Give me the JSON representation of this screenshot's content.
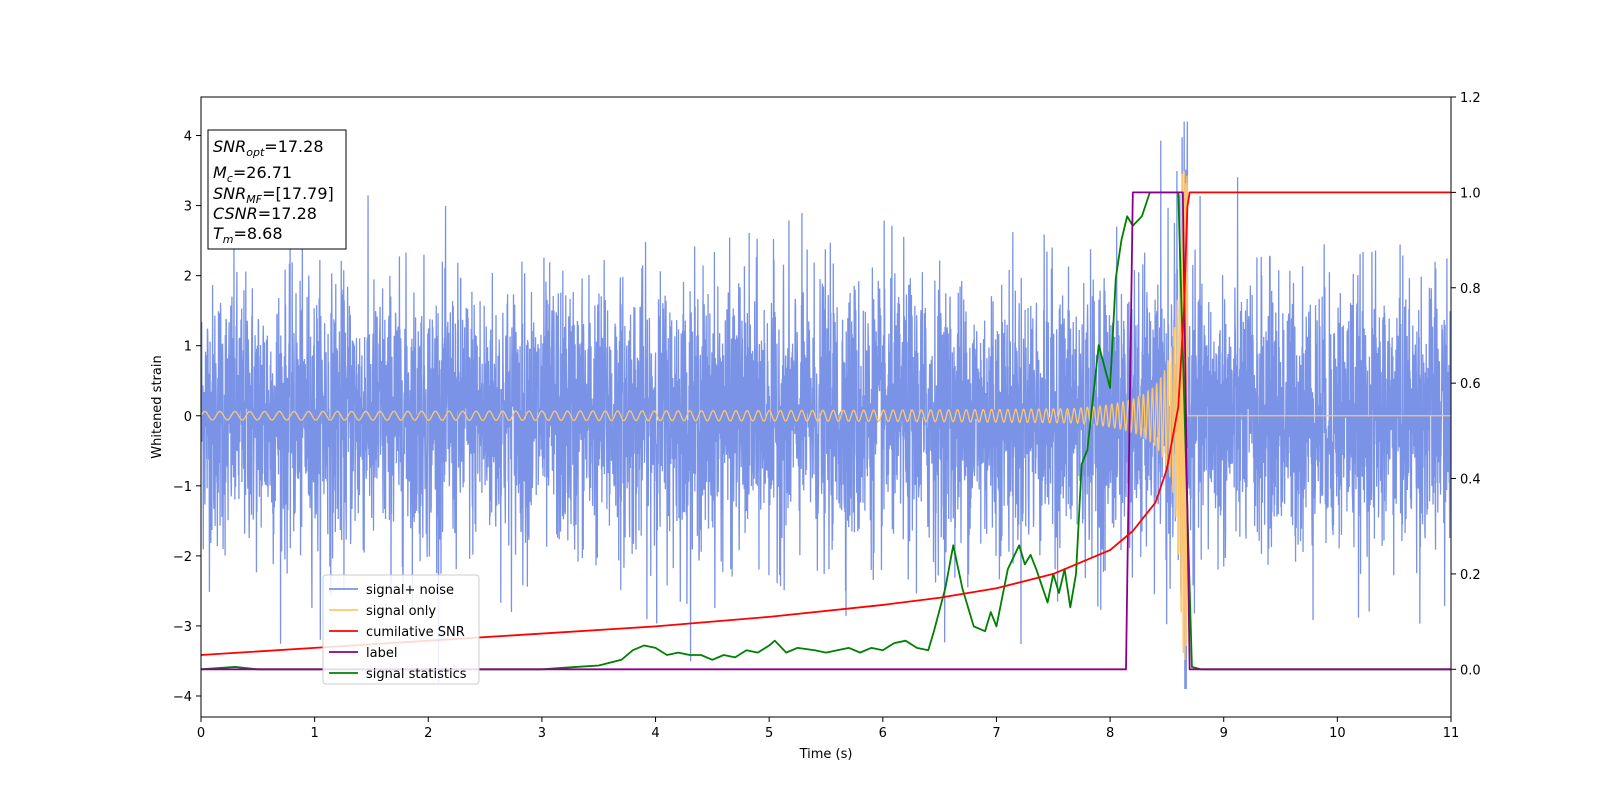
{
  "chart_data": {
    "type": "line",
    "xlabel": "Time (s)",
    "ylabel": "Whitened strain",
    "xlim": [
      0,
      11
    ],
    "ylim_left": [
      -4.3,
      4.55
    ],
    "ylim_right": [
      -0.1,
      1.2
    ],
    "x_ticks": [
      "0",
      "1",
      "2",
      "3",
      "4",
      "5",
      "6",
      "7",
      "8",
      "9",
      "10",
      "11"
    ],
    "y_left_ticks": [
      "4",
      "3",
      "2",
      "1",
      "0",
      "−1",
      "−2",
      "−3",
      "−4"
    ],
    "y_left_tick_values": [
      4,
      3,
      2,
      1,
      0,
      -1,
      -2,
      -3,
      -4
    ],
    "y_right_ticks": [
      "1.2",
      "1.0",
      "0.8",
      "0.6",
      "0.4",
      "0.2",
      "0.0"
    ],
    "y_right_tick_values": [
      1.2,
      1.0,
      0.8,
      0.6,
      0.4,
      0.2,
      0.0
    ],
    "grid": false,
    "legend_position": "lower-left",
    "annotation": {
      "snr_opt": {
        "base": "SNR",
        "sub": "opt",
        "value": "=17.28"
      },
      "mc": {
        "base": "M",
        "sub": "c",
        "value": "=26.71"
      },
      "snr_mf": {
        "base": "SNR",
        "sub": "MF",
        "value": "=[17.79]"
      },
      "csnr": {
        "base": "CSNR",
        "value": "=17.28"
      },
      "tm": {
        "base": "T",
        "sub": "m",
        "value": "=8.68"
      }
    },
    "series": [
      {
        "name": "signal+ noise",
        "color": "#7a93e6",
        "axis": "left",
        "noise_std": 1.0,
        "chirp_end_time": 8.68,
        "approx_range": [
          -3.9,
          4.2
        ]
      },
      {
        "name": "signal only",
        "color": "#ffc76b",
        "axis": "left",
        "chirp_end_time": 8.68,
        "peak_amplitude": 3.5
      },
      {
        "name": "cumilative SNR",
        "color": "#ff0000",
        "axis": "right",
        "x": [
          0,
          1,
          2,
          3,
          4,
          5,
          6,
          6.5,
          7,
          7.5,
          8,
          8.2,
          8.4,
          8.5,
          8.6,
          8.65,
          8.68,
          8.7,
          11
        ],
        "y": [
          0.03,
          0.045,
          0.06,
          0.075,
          0.09,
          0.11,
          0.135,
          0.15,
          0.17,
          0.2,
          0.25,
          0.29,
          0.35,
          0.42,
          0.55,
          0.75,
          0.97,
          1.0,
          1.0
        ]
      },
      {
        "name": "label",
        "color": "#8b008b",
        "axis": "right",
        "x": [
          0,
          8.14,
          8.2,
          8.64,
          8.7,
          11
        ],
        "y": [
          0,
          0,
          1.0,
          1.0,
          0,
          0
        ]
      },
      {
        "name": "signal statistics",
        "color": "#008000",
        "axis": "right",
        "x": [
          0,
          0.3,
          0.5,
          1,
          2,
          3,
          3.3,
          3.5,
          3.7,
          3.8,
          3.9,
          4.0,
          4.1,
          4.2,
          4.3,
          4.4,
          4.5,
          4.6,
          4.7,
          4.8,
          4.9,
          5.0,
          5.05,
          5.15,
          5.25,
          5.4,
          5.5,
          5.6,
          5.7,
          5.8,
          5.9,
          6.0,
          6.1,
          6.2,
          6.3,
          6.4,
          6.45,
          6.55,
          6.62,
          6.7,
          6.8,
          6.9,
          6.95,
          7.0,
          7.1,
          7.2,
          7.25,
          7.3,
          7.35,
          7.45,
          7.5,
          7.55,
          7.6,
          7.65,
          7.7,
          7.75,
          7.8,
          7.9,
          8.0,
          8.05,
          8.1,
          8.15,
          8.2,
          8.28,
          8.35,
          8.4,
          8.5,
          8.6,
          8.66,
          8.72,
          8.8,
          9.0,
          9.5,
          11
        ],
        "y": [
          0,
          0.005,
          0,
          0,
          0,
          0,
          0.005,
          0.008,
          0.02,
          0.04,
          0.05,
          0.045,
          0.03,
          0.035,
          0.03,
          0.03,
          0.02,
          0.03,
          0.025,
          0.04,
          0.035,
          0.05,
          0.06,
          0.035,
          0.045,
          0.04,
          0.035,
          0.04,
          0.045,
          0.035,
          0.045,
          0.04,
          0.055,
          0.06,
          0.045,
          0.04,
          0.08,
          0.17,
          0.26,
          0.17,
          0.09,
          0.08,
          0.12,
          0.09,
          0.21,
          0.26,
          0.22,
          0.24,
          0.21,
          0.14,
          0.2,
          0.16,
          0.21,
          0.13,
          0.2,
          0.43,
          0.46,
          0.68,
          0.59,
          0.82,
          0.9,
          0.95,
          0.93,
          0.95,
          1.0,
          1.0,
          1.0,
          1.0,
          0.5,
          0.005,
          0,
          0,
          0,
          0
        ]
      }
    ]
  }
}
